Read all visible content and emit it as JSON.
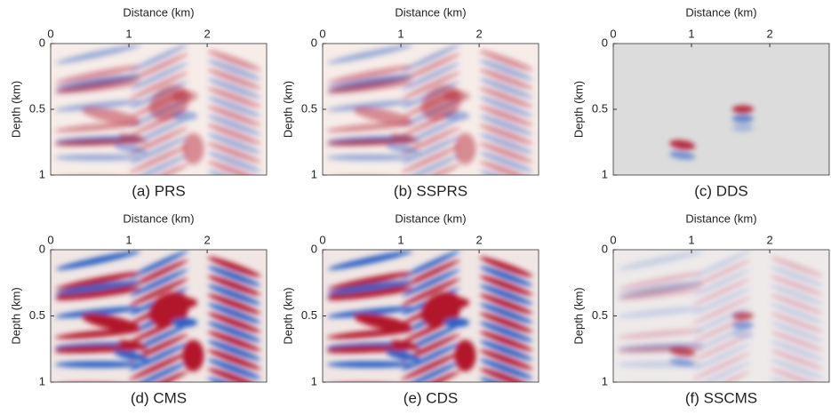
{
  "chart_data": [
    {
      "type": "image",
      "title": "(a) PRS",
      "xlabel": "Distance (km)",
      "ylabel": "Depth (km)",
      "xlim": [
        0,
        2.76
      ],
      "xticks": [
        0,
        1,
        2
      ],
      "ylim": [
        0,
        1
      ],
      "yticks": [
        0,
        0.5,
        1
      ]
    },
    {
      "type": "image",
      "title": "(b) SSPRS",
      "xlabel": "Distance (km)",
      "ylabel": "Depth (km)",
      "xlim": [
        0,
        2.76
      ],
      "xticks": [
        0,
        1,
        2
      ],
      "ylim": [
        0,
        1
      ],
      "yticks": [
        0,
        0.5,
        1
      ]
    },
    {
      "type": "image",
      "title": "(c) DDS",
      "xlabel": "Distance (km)",
      "ylabel": "Depth (km)",
      "xlim": [
        0,
        2.76
      ],
      "xticks": [
        0,
        1,
        2
      ],
      "ylim": [
        0,
        1
      ],
      "yticks": [
        0,
        0.5,
        1
      ]
    },
    {
      "type": "image",
      "title": "(d) CMS",
      "xlabel": "Distance (km)",
      "ylabel": "Depth (km)",
      "xlim": [
        0,
        2.76
      ],
      "xticks": [
        0,
        1,
        2
      ],
      "ylim": [
        0,
        1
      ],
      "yticks": [
        0,
        0.5,
        1
      ]
    },
    {
      "type": "image",
      "title": "(e) CDS",
      "xlabel": "Distance (km)",
      "ylabel": "Depth (km)",
      "xlim": [
        0,
        2.76
      ],
      "xticks": [
        0,
        1,
        2
      ],
      "ylim": [
        0,
        1
      ],
      "yticks": [
        0,
        0.5,
        1
      ]
    },
    {
      "type": "image",
      "title": "(f) SSCMS",
      "xlabel": "Distance (km)",
      "ylabel": "Depth (km)",
      "xlim": [
        0,
        2.76
      ],
      "xticks": [
        0,
        1,
        2
      ],
      "ylim": [
        0,
        1
      ],
      "yticks": [
        0,
        0.5,
        1
      ]
    }
  ]
}
